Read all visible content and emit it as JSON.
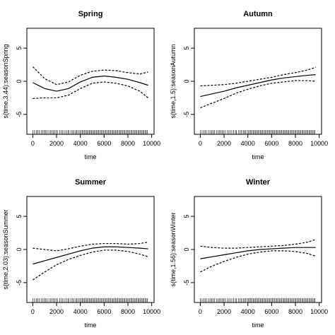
{
  "chart_data": [
    {
      "type": "line",
      "title": "Spring",
      "xlabel": "time",
      "ylabel": "s(time,3.44):seasonSpring",
      "xlim": [
        -500,
        10200
      ],
      "ylim": [
        -8,
        8
      ],
      "xticks": [
        0,
        2000,
        4000,
        6000,
        8000,
        10000
      ],
      "yticks": [
        -5,
        0,
        5
      ],
      "x": [
        0,
        1000,
        2000,
        3000,
        4000,
        5000,
        6000,
        7000,
        8000,
        9000,
        9700
      ],
      "series": [
        {
          "role": "fit",
          "style": "solid",
          "values": [
            -0.2,
            -1.1,
            -1.5,
            -1.1,
            -0.1,
            0.6,
            0.8,
            0.6,
            0.3,
            -0.2,
            -0.6
          ]
        },
        {
          "role": "upper",
          "style": "dashed",
          "values": [
            2.2,
            0.4,
            -0.5,
            -0.1,
            0.9,
            1.5,
            1.7,
            1.6,
            1.3,
            1.1,
            1.4
          ]
        },
        {
          "role": "lower",
          "style": "dashed",
          "values": [
            -2.6,
            -2.5,
            -2.5,
            -2.1,
            -1.1,
            -0.3,
            -0.1,
            -0.3,
            -0.7,
            -1.5,
            -2.5
          ]
        }
      ],
      "grid": false
    },
    {
      "type": "line",
      "title": "Autumn",
      "xlabel": "time",
      "ylabel": "s(time,1.5):seasonAutumn",
      "xlim": [
        -500,
        10200
      ],
      "ylim": [
        -8,
        8
      ],
      "xticks": [
        0,
        2000,
        4000,
        6000,
        8000,
        10000
      ],
      "yticks": [
        -5,
        0,
        5
      ],
      "x": [
        0,
        1000,
        2000,
        3000,
        4000,
        5000,
        6000,
        7000,
        8000,
        9000,
        9700
      ],
      "series": [
        {
          "role": "fit",
          "style": "solid",
          "values": [
            -2.3,
            -1.9,
            -1.5,
            -1.0,
            -0.6,
            -0.2,
            0.2,
            0.5,
            0.7,
            0.9,
            1.0
          ]
        },
        {
          "role": "upper",
          "style": "dashed",
          "values": [
            -0.7,
            -0.6,
            -0.5,
            -0.3,
            0.0,
            0.3,
            0.6,
            1.0,
            1.3,
            1.7,
            2.1
          ]
        },
        {
          "role": "lower",
          "style": "dashed",
          "values": [
            -4.0,
            -3.3,
            -2.6,
            -1.8,
            -1.2,
            -0.7,
            -0.3,
            -0.1,
            0.1,
            0.1,
            0.0
          ]
        }
      ],
      "grid": false
    },
    {
      "type": "line",
      "title": "Summer",
      "xlabel": "time",
      "ylabel": "s(time,2.03):seasonSummer",
      "xlim": [
        -500,
        10200
      ],
      "ylim": [
        -8,
        8
      ],
      "xticks": [
        0,
        2000,
        4000,
        6000,
        8000,
        10000
      ],
      "yticks": [
        -5,
        0,
        5
      ],
      "x": [
        0,
        1000,
        2000,
        3000,
        4000,
        5000,
        6000,
        7000,
        8000,
        9000,
        9700
      ],
      "series": [
        {
          "role": "fit",
          "style": "solid",
          "values": [
            -2.2,
            -1.7,
            -1.2,
            -0.7,
            -0.2,
            0.2,
            0.4,
            0.4,
            0.3,
            0.2,
            0.1
          ]
        },
        {
          "role": "upper",
          "style": "dashed",
          "values": [
            0.2,
            0.0,
            -0.2,
            0.1,
            0.5,
            0.8,
            0.9,
            0.9,
            0.8,
            0.9,
            1.1
          ]
        },
        {
          "role": "lower",
          "style": "dashed",
          "values": [
            -4.6,
            -3.4,
            -2.3,
            -1.5,
            -0.9,
            -0.4,
            -0.1,
            -0.1,
            -0.3,
            -0.7,
            -1.1
          ]
        }
      ],
      "grid": false
    },
    {
      "type": "line",
      "title": "Winter",
      "xlabel": "time",
      "ylabel": "s(time,1.56):seasonWinter",
      "xlim": [
        -500,
        10200
      ],
      "ylim": [
        -8,
        8
      ],
      "xticks": [
        0,
        2000,
        4000,
        6000,
        8000,
        10000
      ],
      "yticks": [
        -5,
        0,
        5
      ],
      "x": [
        0,
        1000,
        2000,
        3000,
        4000,
        5000,
        6000,
        7000,
        8000,
        9000,
        9700
      ],
      "series": [
        {
          "role": "fit",
          "style": "solid",
          "values": [
            -1.4,
            -1.1,
            -0.8,
            -0.5,
            -0.2,
            0.0,
            0.1,
            0.2,
            0.3,
            0.3,
            0.3
          ]
        },
        {
          "role": "upper",
          "style": "dashed",
          "values": [
            0.5,
            0.3,
            0.2,
            0.2,
            0.3,
            0.4,
            0.5,
            0.6,
            0.8,
            1.1,
            1.5
          ]
        },
        {
          "role": "lower",
          "style": "dashed",
          "values": [
            -3.4,
            -2.5,
            -1.8,
            -1.2,
            -0.7,
            -0.4,
            -0.2,
            -0.2,
            -0.3,
            -0.6,
            -1.0
          ]
        }
      ],
      "grid": false
    }
  ],
  "rug_x": [
    0,
    150,
    300,
    420,
    560,
    700,
    820,
    950,
    1080,
    1200,
    1350,
    1480,
    1600,
    1720,
    1850,
    1980,
    2100,
    2250,
    2400,
    2520,
    2650,
    2800,
    2950,
    3050,
    3200,
    3350,
    3450,
    3600,
    3700,
    3820,
    3950,
    4050,
    4150,
    4250,
    4350,
    4450,
    4550,
    4650,
    4750,
    4850,
    4950,
    5050,
    5150,
    5250,
    5350,
    5450,
    5550,
    5650,
    5750,
    5850,
    5950,
    6050,
    6150,
    6250,
    6350,
    6450,
    6550,
    6650,
    6750,
    6850,
    6950,
    7050,
    7150,
    7250,
    7350,
    7450,
    7550,
    7650,
    7750,
    7850,
    7950,
    8050,
    8150,
    8250,
    8350,
    8450,
    8550,
    8650,
    8750,
    8850,
    8950,
    9050,
    9150,
    9250,
    9350,
    9450,
    9550,
    9650
  ]
}
